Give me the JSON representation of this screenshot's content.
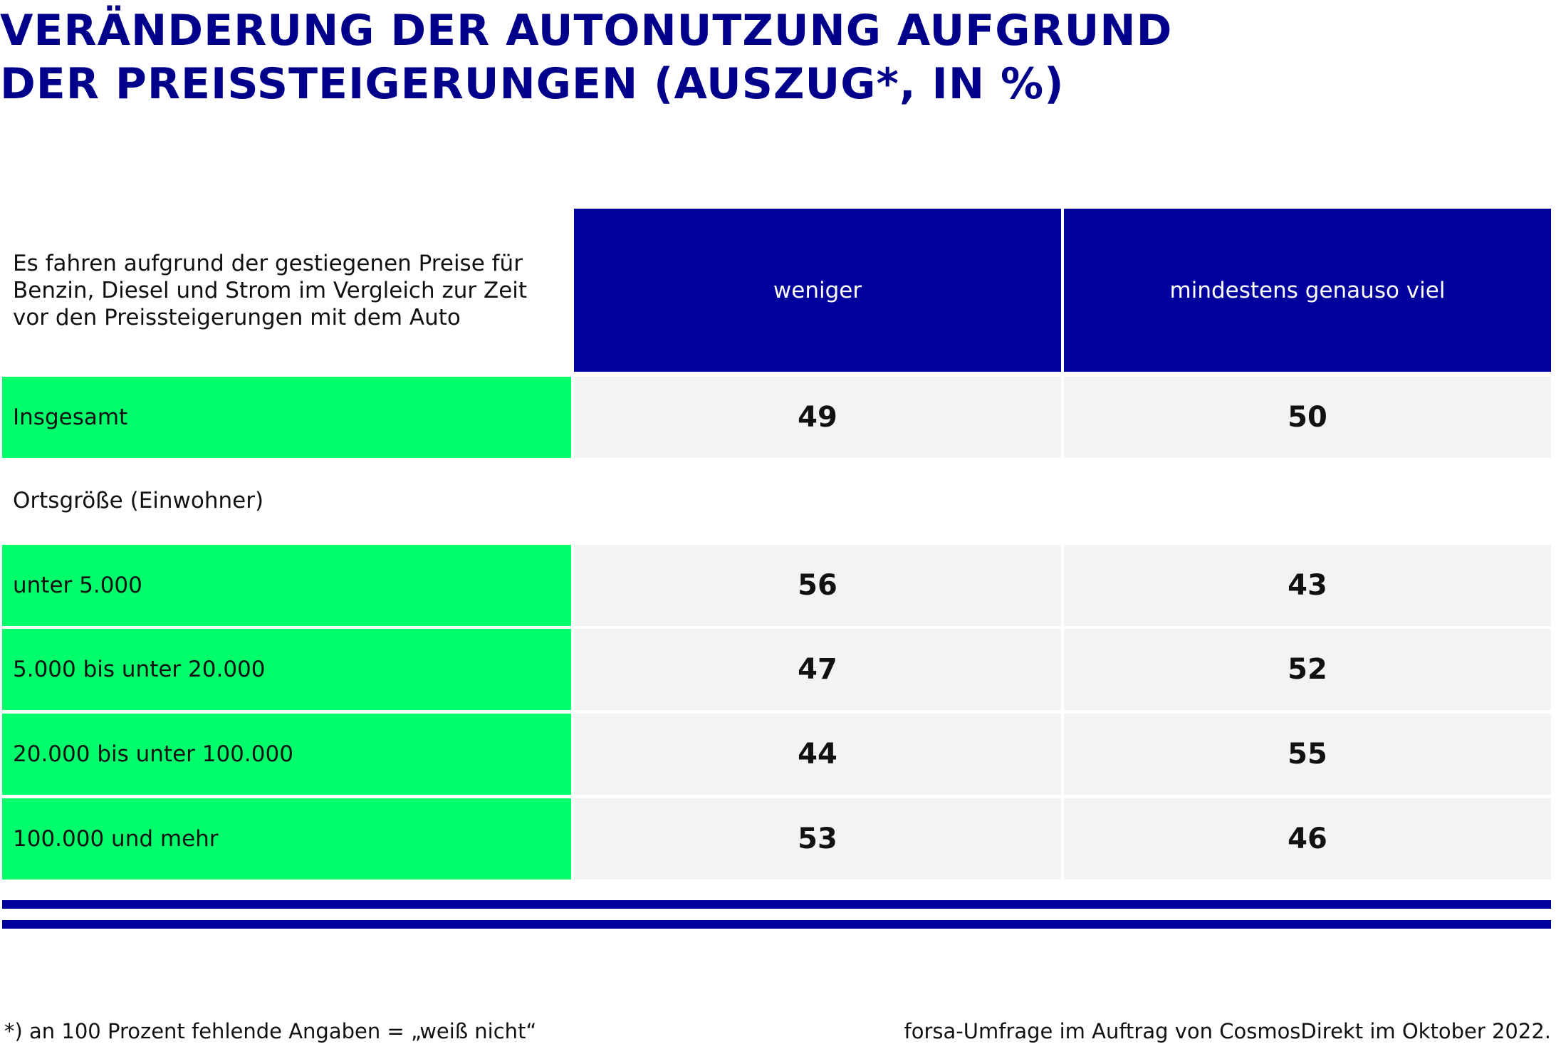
{
  "title": {
    "line1": "VERÄNDERUNG DER AUTONUTZUNG AUFGRUND",
    "line2": "DER PREISSTEIGERUNGEN (AUSZUG*, IN %)"
  },
  "colors": {
    "title": "#00008B",
    "header_bg": "#00009C",
    "row_label_bg": "#00FF6A",
    "value_bg": "#F3F3F3"
  },
  "chart_data": {
    "type": "table",
    "header": {
      "question": "Es fahren aufgrund der gestiegenen Preise für Benzin, Diesel und Strom im Vergleich zur Zeit vor den Preissteigerungen mit dem Auto",
      "columns": [
        "weniger",
        "mindestens genauso viel"
      ]
    },
    "rows": [
      {
        "label": "Insgesamt",
        "values": [
          "49",
          "50"
        ]
      },
      {
        "group_label": "Ortsgröße (Einwohner)"
      },
      {
        "label": "unter 5.000",
        "values": [
          "56",
          "43"
        ]
      },
      {
        "label": "5.000 bis unter 20.000",
        "values": [
          "47",
          "52"
        ]
      },
      {
        "label": "20.000 bis unter 100.000",
        "values": [
          "44",
          "55"
        ]
      },
      {
        "label": "100.000 und mehr",
        "values": [
          "53",
          "46"
        ]
      }
    ]
  },
  "footnotes": {
    "left": "*) an 100 Prozent fehlende Angaben = „weiß nicht“",
    "right": "forsa-Umfrage im Auftrag von CosmosDirekt im Oktober 2022."
  }
}
